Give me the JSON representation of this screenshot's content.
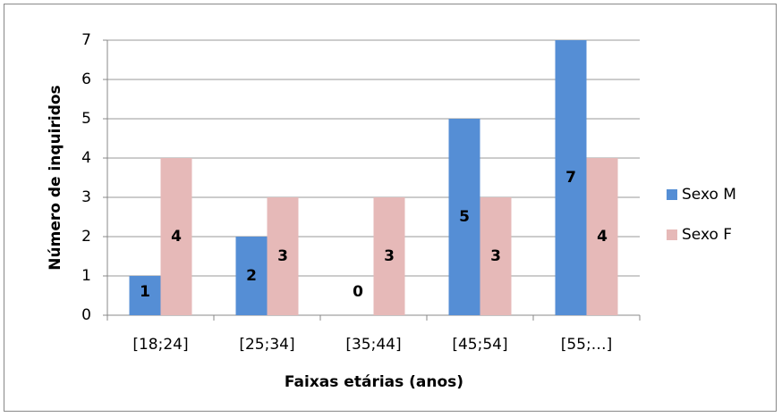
{
  "chart_data": {
    "type": "bar",
    "categories": [
      "[18;24]",
      "[25;34]",
      "[35;44]",
      "[45;54]",
      "[55;…]"
    ],
    "series": [
      {
        "name": "Sexo M",
        "color": "#558ed5",
        "values": [
          1,
          2,
          0,
          5,
          7
        ]
      },
      {
        "name": "Sexo F",
        "color": "#e6b9b8",
        "values": [
          4,
          3,
          3,
          3,
          4
        ]
      }
    ],
    "ylabel": "Número de inquiridos",
    "xlabel": "Faixas etárias (anos)",
    "ylim": [
      0,
      7
    ],
    "yticks": [
      0,
      1,
      2,
      3,
      4,
      5,
      6,
      7
    ],
    "grid": true,
    "legend": "right"
  }
}
